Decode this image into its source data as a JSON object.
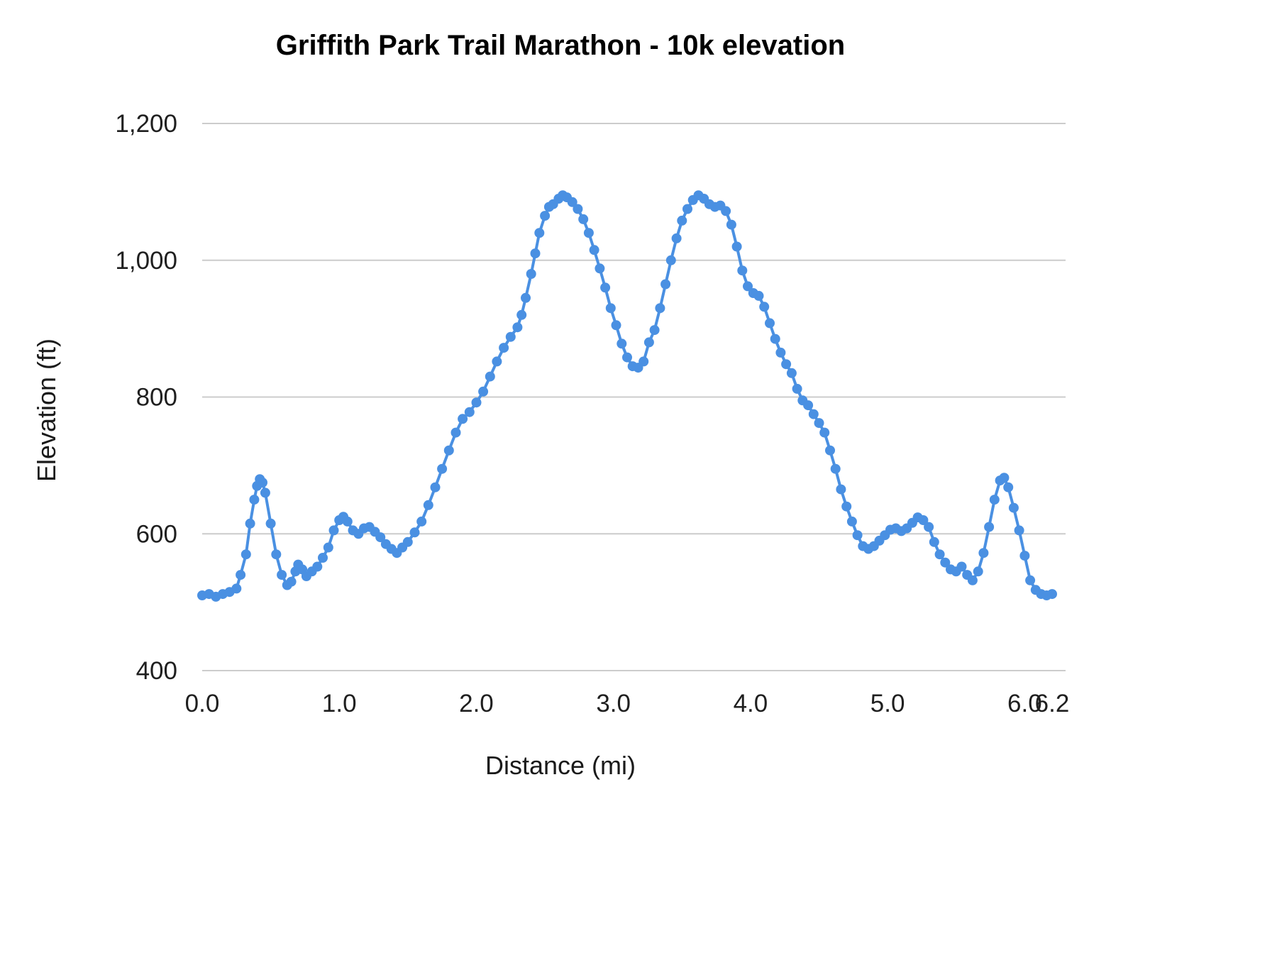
{
  "chart_data": {
    "type": "line",
    "title": "Griffith Park Trail Marathon - 10k elevation",
    "xlabel": "Distance (mi)",
    "ylabel": "Elevation (ft)",
    "xlim": [
      0,
      6.2
    ],
    "ylim": [
      400,
      1200
    ],
    "x_ticks": [
      {
        "v": 0.0,
        "label": "0.0"
      },
      {
        "v": 1.0,
        "label": "1.0"
      },
      {
        "v": 2.0,
        "label": "2.0"
      },
      {
        "v": 3.0,
        "label": "3.0"
      },
      {
        "v": 4.0,
        "label": "4.0"
      },
      {
        "v": 5.0,
        "label": "5.0"
      },
      {
        "v": 6.0,
        "label": "6.0"
      },
      {
        "v": 6.2,
        "label": "6.2"
      }
    ],
    "y_ticks": [
      {
        "v": 400,
        "label": "400"
      },
      {
        "v": 600,
        "label": "600"
      },
      {
        "v": 800,
        "label": "800"
      },
      {
        "v": 1000,
        "label": "1,000"
      },
      {
        "v": 1200,
        "label": "1,200"
      }
    ],
    "grid": true,
    "legend": "none",
    "line_color": "#4a90e2",
    "grid_color": "#cccccc",
    "point_radius": 7,
    "line_width": 4,
    "series_name": "Elevation",
    "points": [
      [
        0.0,
        510
      ],
      [
        0.05,
        512
      ],
      [
        0.1,
        508
      ],
      [
        0.15,
        512
      ],
      [
        0.2,
        515
      ],
      [
        0.25,
        520
      ],
      [
        0.28,
        540
      ],
      [
        0.32,
        570
      ],
      [
        0.35,
        615
      ],
      [
        0.38,
        650
      ],
      [
        0.4,
        670
      ],
      [
        0.42,
        680
      ],
      [
        0.44,
        675
      ],
      [
        0.46,
        660
      ],
      [
        0.5,
        615
      ],
      [
        0.54,
        570
      ],
      [
        0.58,
        540
      ],
      [
        0.62,
        525
      ],
      [
        0.65,
        530
      ],
      [
        0.68,
        545
      ],
      [
        0.7,
        555
      ],
      [
        0.73,
        548
      ],
      [
        0.76,
        538
      ],
      [
        0.8,
        545
      ],
      [
        0.84,
        552
      ],
      [
        0.88,
        565
      ],
      [
        0.92,
        580
      ],
      [
        0.96,
        605
      ],
      [
        1.0,
        620
      ],
      [
        1.03,
        625
      ],
      [
        1.06,
        618
      ],
      [
        1.1,
        605
      ],
      [
        1.14,
        600
      ],
      [
        1.18,
        608
      ],
      [
        1.22,
        610
      ],
      [
        1.26,
        603
      ],
      [
        1.3,
        595
      ],
      [
        1.34,
        585
      ],
      [
        1.38,
        578
      ],
      [
        1.42,
        572
      ],
      [
        1.46,
        580
      ],
      [
        1.5,
        588
      ],
      [
        1.55,
        602
      ],
      [
        1.6,
        618
      ],
      [
        1.65,
        642
      ],
      [
        1.7,
        668
      ],
      [
        1.75,
        695
      ],
      [
        1.8,
        722
      ],
      [
        1.85,
        748
      ],
      [
        1.9,
        768
      ],
      [
        1.95,
        778
      ],
      [
        2.0,
        792
      ],
      [
        2.05,
        808
      ],
      [
        2.1,
        830
      ],
      [
        2.15,
        852
      ],
      [
        2.2,
        872
      ],
      [
        2.25,
        888
      ],
      [
        2.3,
        902
      ],
      [
        2.33,
        920
      ],
      [
        2.36,
        945
      ],
      [
        2.4,
        980
      ],
      [
        2.43,
        1010
      ],
      [
        2.46,
        1040
      ],
      [
        2.5,
        1065
      ],
      [
        2.53,
        1078
      ],
      [
        2.56,
        1082
      ],
      [
        2.6,
        1090
      ],
      [
        2.63,
        1095
      ],
      [
        2.66,
        1092
      ],
      [
        2.7,
        1085
      ],
      [
        2.74,
        1075
      ],
      [
        2.78,
        1060
      ],
      [
        2.82,
        1040
      ],
      [
        2.86,
        1015
      ],
      [
        2.9,
        988
      ],
      [
        2.94,
        960
      ],
      [
        2.98,
        930
      ],
      [
        3.02,
        905
      ],
      [
        3.06,
        878
      ],
      [
        3.1,
        858
      ],
      [
        3.14,
        845
      ],
      [
        3.18,
        843
      ],
      [
        3.22,
        852
      ],
      [
        3.26,
        880
      ],
      [
        3.3,
        898
      ],
      [
        3.34,
        930
      ],
      [
        3.38,
        965
      ],
      [
        3.42,
        1000
      ],
      [
        3.46,
        1032
      ],
      [
        3.5,
        1058
      ],
      [
        3.54,
        1075
      ],
      [
        3.58,
        1088
      ],
      [
        3.62,
        1095
      ],
      [
        3.66,
        1090
      ],
      [
        3.7,
        1082
      ],
      [
        3.74,
        1078
      ],
      [
        3.78,
        1080
      ],
      [
        3.82,
        1072
      ],
      [
        3.86,
        1052
      ],
      [
        3.9,
        1020
      ],
      [
        3.94,
        985
      ],
      [
        3.98,
        962
      ],
      [
        4.02,
        952
      ],
      [
        4.06,
        948
      ],
      [
        4.1,
        932
      ],
      [
        4.14,
        908
      ],
      [
        4.18,
        885
      ],
      [
        4.22,
        865
      ],
      [
        4.26,
        848
      ],
      [
        4.3,
        835
      ],
      [
        4.34,
        812
      ],
      [
        4.38,
        795
      ],
      [
        4.42,
        788
      ],
      [
        4.46,
        775
      ],
      [
        4.5,
        762
      ],
      [
        4.54,
        748
      ],
      [
        4.58,
        722
      ],
      [
        4.62,
        695
      ],
      [
        4.66,
        665
      ],
      [
        4.7,
        640
      ],
      [
        4.74,
        618
      ],
      [
        4.78,
        598
      ],
      [
        4.82,
        582
      ],
      [
        4.86,
        578
      ],
      [
        4.9,
        582
      ],
      [
        4.94,
        590
      ],
      [
        4.98,
        598
      ],
      [
        5.02,
        606
      ],
      [
        5.06,
        608
      ],
      [
        5.1,
        604
      ],
      [
        5.14,
        608
      ],
      [
        5.18,
        616
      ],
      [
        5.22,
        624
      ],
      [
        5.26,
        620
      ],
      [
        5.3,
        610
      ],
      [
        5.34,
        588
      ],
      [
        5.38,
        570
      ],
      [
        5.42,
        558
      ],
      [
        5.46,
        548
      ],
      [
        5.5,
        545
      ],
      [
        5.54,
        552
      ],
      [
        5.58,
        540
      ],
      [
        5.62,
        532
      ],
      [
        5.66,
        545
      ],
      [
        5.7,
        572
      ],
      [
        5.74,
        610
      ],
      [
        5.78,
        650
      ],
      [
        5.82,
        678
      ],
      [
        5.85,
        682
      ],
      [
        5.88,
        668
      ],
      [
        5.92,
        638
      ],
      [
        5.96,
        605
      ],
      [
        6.0,
        568
      ],
      [
        6.04,
        532
      ],
      [
        6.08,
        518
      ],
      [
        6.12,
        512
      ],
      [
        6.16,
        510
      ],
      [
        6.2,
        512
      ]
    ]
  }
}
